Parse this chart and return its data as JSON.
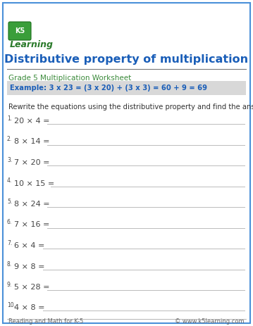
{
  "title": "Distributive property of multiplication",
  "subtitle": "Grade 5 Multiplication Worksheet",
  "example_text": "Example: 3 x 23 = (3 x 20) + (3 x 3) = 60 + 9 = 69",
  "instruction": "Rewrite the equations using the distributive property and find the answer.",
  "problems": [
    "20 × 4 =",
    "8 × 14 =",
    "7 × 20 =",
    "10 × 15 =",
    "8 × 24 =",
    "7 × 16 =",
    "6 × 4 =",
    "9 × 8 =",
    "5 × 28 =",
    "4 × 8 ="
  ],
  "footer_left": "Reading and Math for K-5",
  "footer_right": "© www.k5learning.com",
  "title_color": "#1a5eb8",
  "subtitle_color": "#3a8a3a",
  "example_bg": "#d8d8d8",
  "example_text_color": "#1a5eb8",
  "border_color": "#4a90d9",
  "bg_color": "#ffffff",
  "line_color": "#bbbbbb",
  "problem_color": "#444444",
  "instruction_color": "#333333",
  "footer_color": "#666666"
}
